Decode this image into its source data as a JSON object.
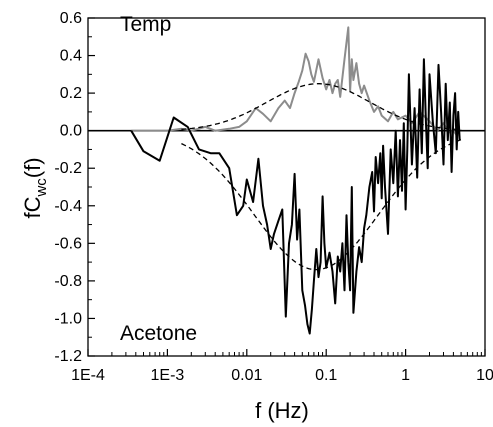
{
  "chart_data": {
    "type": "line",
    "title": "",
    "xlabel": "f (Hz)",
    "ylabel_main": "fC",
    "ylabel_sub": "wc",
    "ylabel_tail": "(f)",
    "xscale": "log",
    "xlim": [
      0.0001,
      10
    ],
    "ylim": [
      -1.2,
      0.6
    ],
    "x_ticks": [
      {
        "v": 0.0001,
        "label": "1E-4"
      },
      {
        "v": 0.001,
        "label": "1E-3"
      },
      {
        "v": 0.01,
        "label": "0.01"
      },
      {
        "v": 0.1,
        "label": "0.1"
      },
      {
        "v": 1,
        "label": "1"
      },
      {
        "v": 10,
        "label": "10"
      }
    ],
    "y_ticks": [
      {
        "v": 0.6,
        "label": "0.6"
      },
      {
        "v": 0.4,
        "label": "0.4"
      },
      {
        "v": 0.2,
        "label": "0.2"
      },
      {
        "v": 0.0,
        "label": "0.0"
      },
      {
        "v": -0.2,
        "label": "-0.2"
      },
      {
        "v": -0.4,
        "label": "-0.4"
      },
      {
        "v": -0.6,
        "label": "-0.6"
      },
      {
        "v": -0.8,
        "label": "-0.8"
      },
      {
        "v": -1.0,
        "label": "-1.0"
      },
      {
        "v": -1.2,
        "label": "-1.2"
      }
    ],
    "grid": false,
    "annotations": [
      {
        "id": "temp",
        "text": "Temp"
      },
      {
        "id": "acetone",
        "text": "Acetone"
      }
    ],
    "zero_line": 0,
    "series": [
      {
        "id": "temp",
        "color": "#8c8c8c",
        "style": "solid",
        "x": [
          0.00035,
          0.0006,
          0.001,
          0.0015,
          0.002,
          0.003,
          0.004,
          0.006,
          0.008,
          0.01,
          0.013,
          0.016,
          0.02,
          0.025,
          0.03,
          0.035,
          0.04,
          0.045,
          0.05,
          0.055,
          0.06,
          0.065,
          0.07,
          0.08,
          0.09,
          0.1,
          0.11,
          0.12,
          0.13,
          0.14,
          0.15,
          0.17,
          0.19,
          0.2,
          0.21,
          0.22,
          0.24,
          0.26,
          0.28,
          0.3,
          0.35,
          0.4,
          0.45,
          0.5,
          0.6,
          0.7,
          0.8,
          1.0,
          1.2,
          1.5,
          2.0,
          2.5,
          3.0,
          3.5,
          4.0,
          4.5
        ],
        "y": [
          0.0,
          0.0,
          0.0,
          0.01,
          0.0,
          0.02,
          0.0,
          0.01,
          0.02,
          0.05,
          0.12,
          0.09,
          0.05,
          0.12,
          0.16,
          0.12,
          0.2,
          0.26,
          0.32,
          0.41,
          0.37,
          0.3,
          0.26,
          0.38,
          0.28,
          0.22,
          0.27,
          0.2,
          0.25,
          0.27,
          0.18,
          0.38,
          0.55,
          0.21,
          0.38,
          0.27,
          0.36,
          0.25,
          0.2,
          0.24,
          0.16,
          0.1,
          0.13,
          0.08,
          0.05,
          0.1,
          0.06,
          0.08,
          0.04,
          0.1,
          0.05,
          0.0,
          0.04,
          -0.01,
          0.0,
          -0.03
        ]
      },
      {
        "id": "acetone",
        "color": "#000000",
        "style": "solid",
        "x": [
          0.00035,
          0.0005,
          0.0008,
          0.0012,
          0.0018,
          0.0025,
          0.0035,
          0.0045,
          0.006,
          0.0075,
          0.009,
          0.01,
          0.012,
          0.014,
          0.016,
          0.018,
          0.02,
          0.022,
          0.025,
          0.028,
          0.031,
          0.034,
          0.037,
          0.04,
          0.043,
          0.046,
          0.05,
          0.054,
          0.058,
          0.062,
          0.066,
          0.07,
          0.075,
          0.08,
          0.085,
          0.09,
          0.095,
          0.1,
          0.11,
          0.12,
          0.13,
          0.14,
          0.15,
          0.16,
          0.17,
          0.18,
          0.19,
          0.2,
          0.21,
          0.22,
          0.24,
          0.26,
          0.28,
          0.3,
          0.32,
          0.35,
          0.38,
          0.4,
          0.42,
          0.45,
          0.48,
          0.5,
          0.52,
          0.55,
          0.6,
          0.65,
          0.7,
          0.75,
          0.8,
          0.85,
          0.9,
          0.95,
          1.0,
          1.05,
          1.1,
          1.2,
          1.3,
          1.4,
          1.5,
          1.6,
          1.7,
          1.8,
          1.9,
          2.0,
          2.2,
          2.4,
          2.6,
          2.8,
          3.0,
          3.2,
          3.4,
          3.6,
          3.8,
          4.0,
          4.2,
          4.4,
          4.6,
          4.8
        ],
        "y": [
          0.0,
          -0.11,
          -0.16,
          0.07,
          0.02,
          -0.1,
          -0.12,
          -0.12,
          -0.2,
          -0.45,
          -0.4,
          -0.26,
          -0.38,
          -0.15,
          -0.4,
          -0.5,
          -0.63,
          -0.55,
          -0.48,
          -0.42,
          -0.99,
          -0.6,
          -0.5,
          -0.23,
          -0.58,
          -0.42,
          -0.85,
          -0.93,
          -1.03,
          -1.08,
          -0.95,
          -0.8,
          -0.63,
          -0.78,
          -0.7,
          -0.35,
          -0.6,
          -0.73,
          -0.65,
          -0.75,
          -0.92,
          -0.67,
          -0.75,
          -0.6,
          -0.85,
          -0.45,
          -0.7,
          -0.85,
          -0.3,
          -0.97,
          -0.75,
          -0.62,
          -0.7,
          -0.52,
          -0.45,
          -0.3,
          -0.22,
          -0.43,
          -0.14,
          -0.28,
          -0.12,
          -0.36,
          -0.08,
          -0.3,
          -0.55,
          -0.1,
          -0.28,
          0.0,
          -0.35,
          -0.05,
          -0.32,
          0.04,
          -0.42,
          -0.1,
          0.3,
          -0.18,
          0.12,
          -0.25,
          0.22,
          -0.12,
          0.38,
          0.05,
          -0.2,
          0.3,
          0.05,
          -0.12,
          0.35,
          0.1,
          -0.18,
          0.25,
          -0.05,
          0.15,
          -0.22,
          0.08,
          0.2,
          -0.1,
          0.1,
          -0.05
        ]
      },
      {
        "id": "fit-temp",
        "color": "#000000",
        "style": "dashed",
        "model": "lognormal",
        "amplitude": 0.25,
        "center": 0.08,
        "width_decades": 0.65,
        "xrange": [
          0.0015,
          5
        ]
      },
      {
        "id": "fit-acetone",
        "color": "#000000",
        "style": "dashed",
        "model": "lognormal",
        "amplitude": -0.74,
        "center": 0.075,
        "width_decades": 0.78,
        "xrange": [
          0.0015,
          5
        ]
      }
    ]
  }
}
